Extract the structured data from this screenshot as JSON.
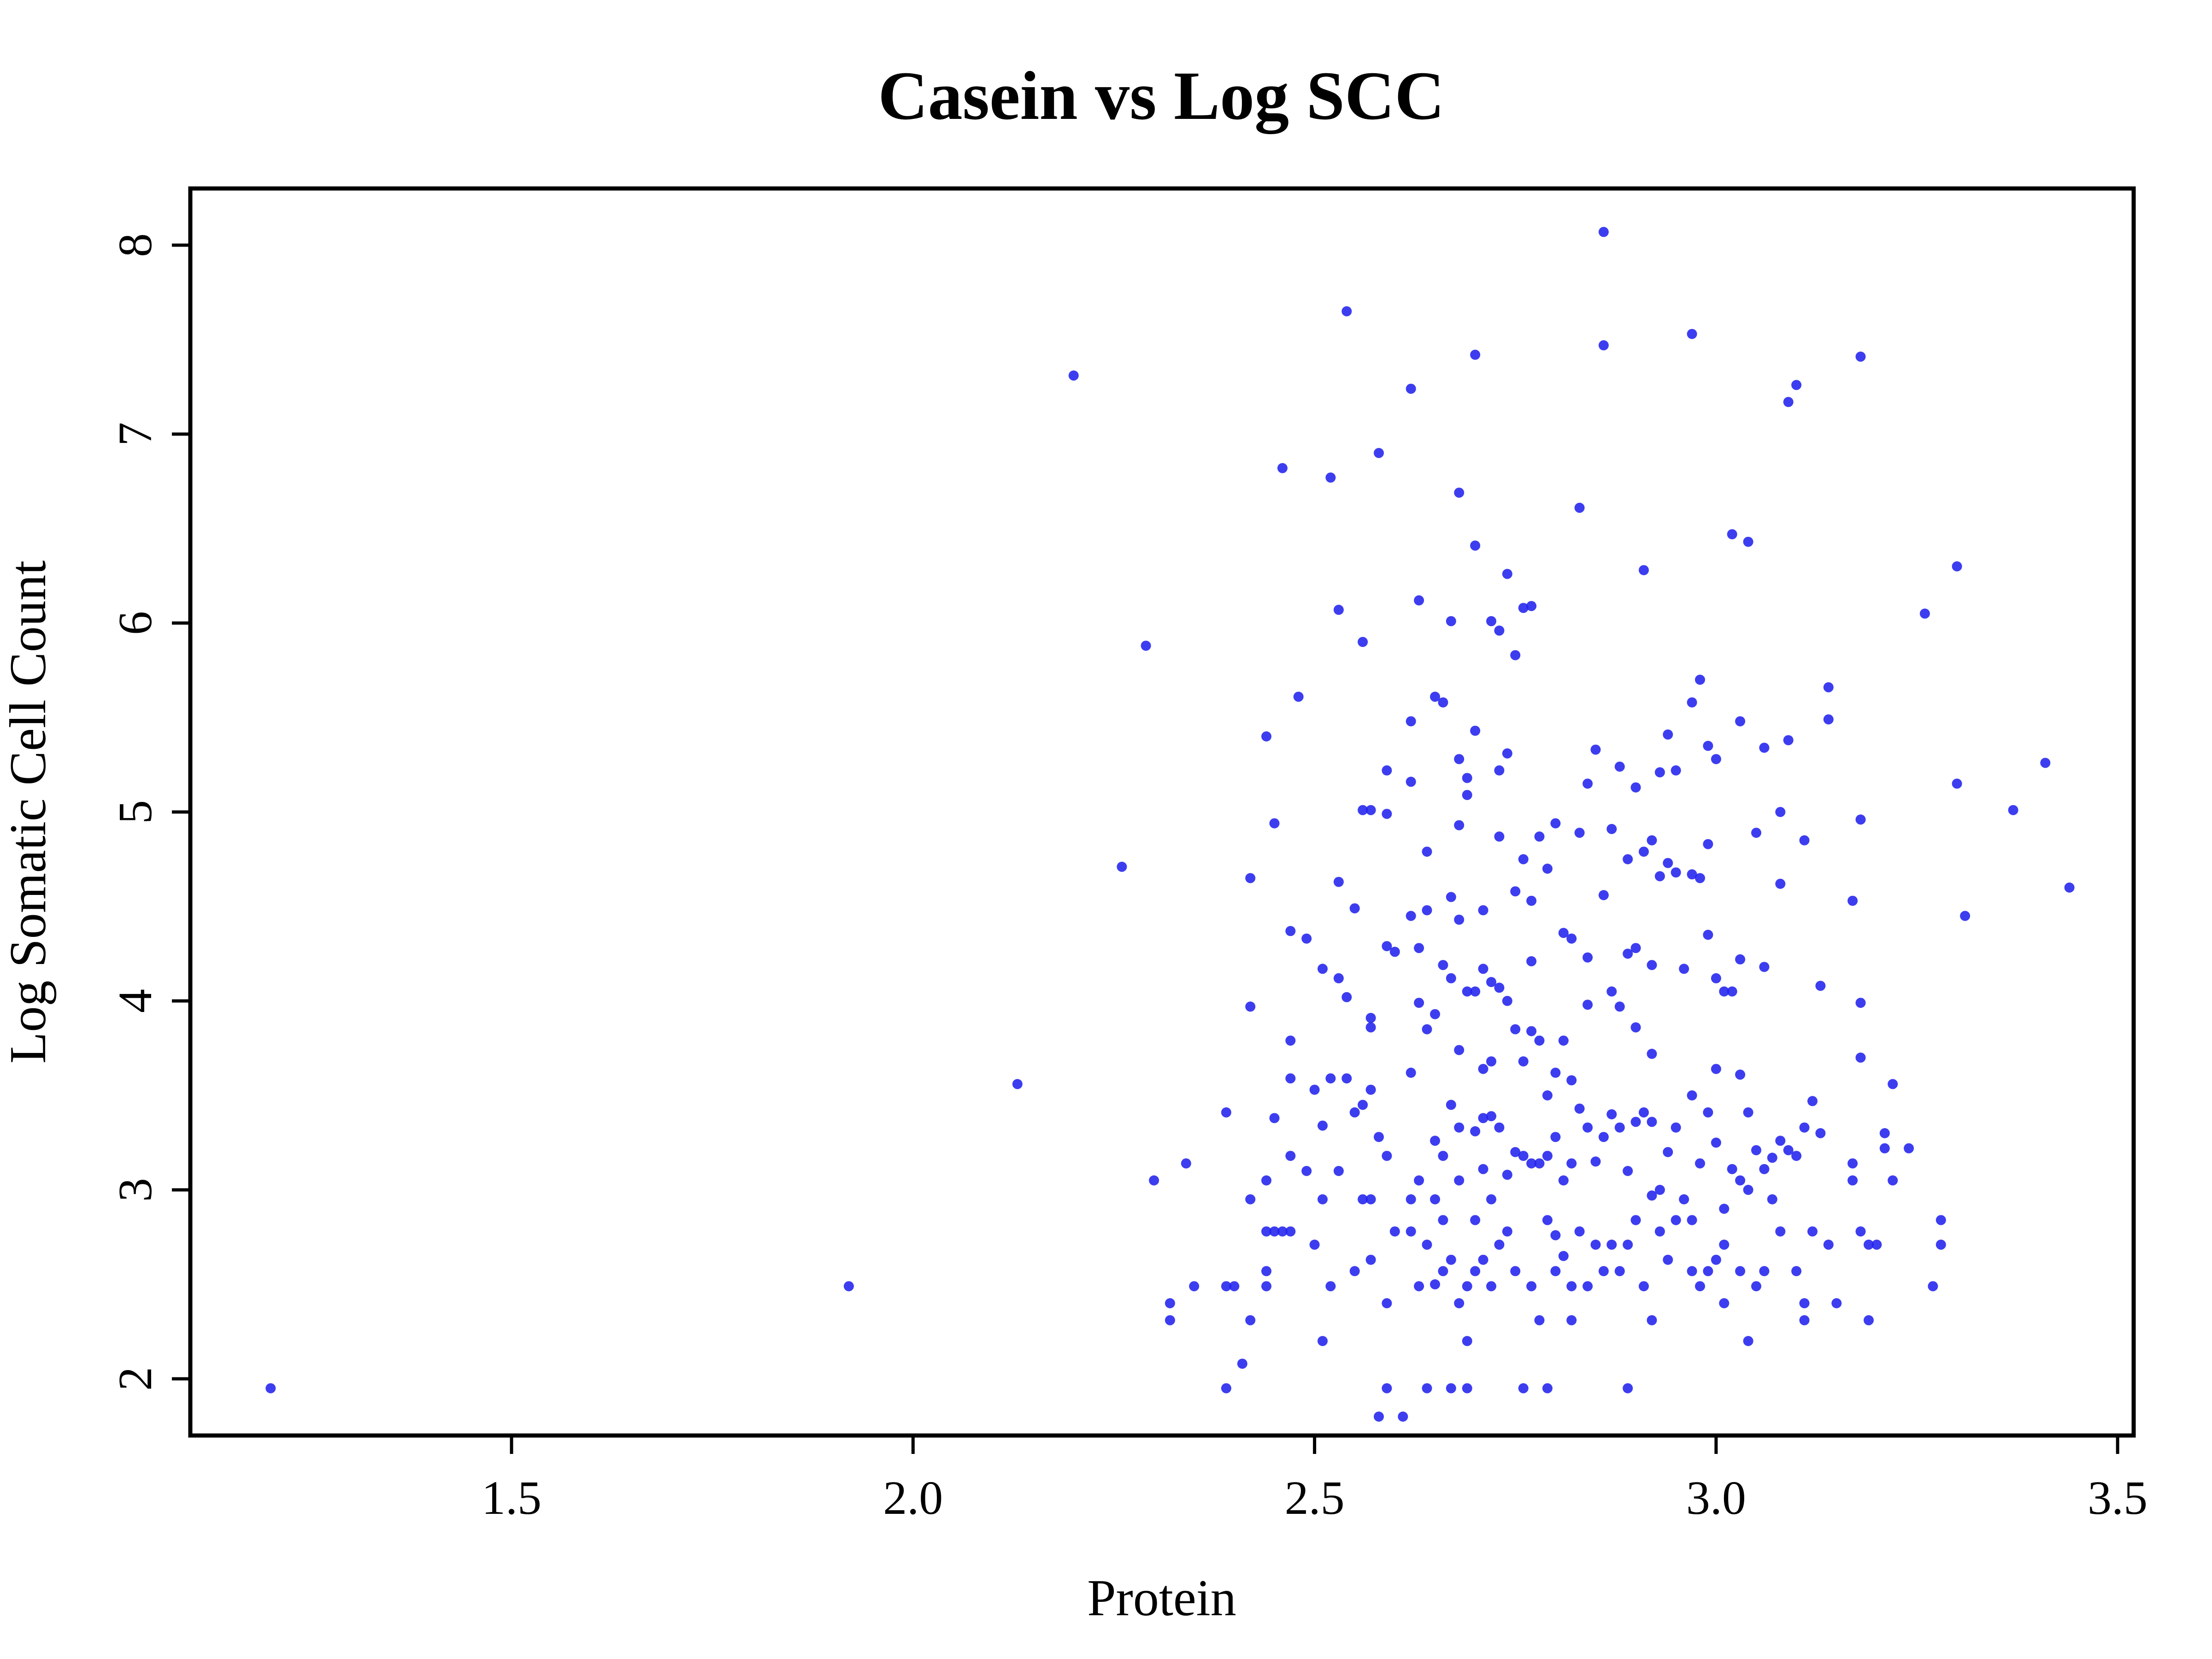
{
  "chart_data": {
    "type": "scatter",
    "title": "Casein vs Log SCC",
    "xlabel": "Protein",
    "ylabel": "Log Somatic Cell Count",
    "xlim": [
      1.1,
      3.52
    ],
    "ylim": [
      1.7,
      8.3
    ],
    "x_ticks": [
      1.5,
      2.0,
      2.5,
      3.0,
      3.5
    ],
    "x_tick_labels": [
      "1.5",
      "2.0",
      "2.5",
      "3.0",
      "3.5"
    ],
    "y_ticks": [
      2,
      3,
      4,
      5,
      6,
      7,
      8
    ],
    "y_tick_labels": [
      "2",
      "3",
      "4",
      "5",
      "6",
      "7",
      "8"
    ],
    "grid": false,
    "legend": "none",
    "marker_color": "#2222ee",
    "points": [
      [
        1.2,
        1.95
      ],
      [
        1.92,
        2.49
      ],
      [
        2.13,
        3.56
      ],
      [
        2.2,
        7.31
      ],
      [
        2.26,
        4.71
      ],
      [
        2.29,
        5.88
      ],
      [
        2.3,
        3.05
      ],
      [
        2.32,
        2.4
      ],
      [
        2.32,
        2.31
      ],
      [
        2.34,
        3.14
      ],
      [
        2.35,
        2.49
      ],
      [
        2.39,
        3.41
      ],
      [
        2.39,
        2.49
      ],
      [
        2.4,
        2.49
      ],
      [
        2.39,
        1.95
      ],
      [
        2.41,
        2.08
      ],
      [
        2.42,
        4.65
      ],
      [
        2.42,
        3.97
      ],
      [
        2.42,
        2.95
      ],
      [
        2.42,
        2.31
      ],
      [
        2.44,
        5.4
      ],
      [
        2.44,
        3.05
      ],
      [
        2.44,
        2.78
      ],
      [
        2.44,
        2.57
      ],
      [
        2.44,
        2.49
      ],
      [
        2.45,
        4.94
      ],
      [
        2.45,
        3.38
      ],
      [
        2.45,
        2.78
      ],
      [
        2.46,
        6.82
      ],
      [
        2.46,
        2.78
      ],
      [
        2.47,
        4.37
      ],
      [
        2.47,
        3.79
      ],
      [
        2.47,
        3.59
      ],
      [
        2.47,
        3.18
      ],
      [
        2.47,
        2.78
      ],
      [
        2.48,
        5.61
      ],
      [
        2.49,
        4.33
      ],
      [
        2.49,
        3.1
      ],
      [
        2.5,
        3.53
      ],
      [
        2.5,
        2.71
      ],
      [
        2.51,
        4.17
      ],
      [
        2.51,
        3.34
      ],
      [
        2.51,
        2.95
      ],
      [
        2.51,
        2.2
      ],
      [
        2.52,
        6.77
      ],
      [
        2.52,
        3.59
      ],
      [
        2.52,
        2.49
      ],
      [
        2.53,
        6.07
      ],
      [
        2.53,
        4.63
      ],
      [
        2.53,
        4.12
      ],
      [
        2.53,
        3.1
      ],
      [
        2.54,
        7.65
      ],
      [
        2.54,
        4.02
      ],
      [
        2.54,
        3.59
      ],
      [
        2.55,
        4.49
      ],
      [
        2.55,
        3.41
      ],
      [
        2.55,
        2.57
      ],
      [
        2.56,
        5.9
      ],
      [
        2.56,
        5.01
      ],
      [
        2.56,
        3.45
      ],
      [
        2.56,
        2.95
      ],
      [
        2.57,
        5.01
      ],
      [
        2.57,
        3.91
      ],
      [
        2.57,
        3.86
      ],
      [
        2.57,
        3.53
      ],
      [
        2.57,
        2.95
      ],
      [
        2.57,
        2.63
      ],
      [
        2.58,
        6.9
      ],
      [
        2.58,
        3.28
      ],
      [
        2.58,
        1.8
      ],
      [
        2.59,
        5.22
      ],
      [
        2.59,
        4.99
      ],
      [
        2.59,
        4.29
      ],
      [
        2.59,
        3.18
      ],
      [
        2.59,
        2.4
      ],
      [
        2.59,
        1.95
      ],
      [
        2.6,
        4.26
      ],
      [
        2.6,
        2.78
      ],
      [
        2.61,
        1.8
      ],
      [
        2.62,
        7.24
      ],
      [
        2.62,
        5.48
      ],
      [
        2.62,
        5.16
      ],
      [
        2.62,
        4.45
      ],
      [
        2.62,
        3.62
      ],
      [
        2.62,
        2.95
      ],
      [
        2.62,
        2.78
      ],
      [
        2.63,
        6.12
      ],
      [
        2.63,
        4.28
      ],
      [
        2.63,
        3.99
      ],
      [
        2.63,
        3.05
      ],
      [
        2.63,
        2.49
      ],
      [
        2.64,
        4.79
      ],
      [
        2.64,
        4.48
      ],
      [
        2.64,
        3.85
      ],
      [
        2.64,
        2.71
      ],
      [
        2.64,
        1.95
      ],
      [
        2.65,
        5.61
      ],
      [
        2.65,
        3.93
      ],
      [
        2.65,
        3.26
      ],
      [
        2.65,
        2.95
      ],
      [
        2.65,
        2.5
      ],
      [
        2.66,
        5.58
      ],
      [
        2.66,
        4.19
      ],
      [
        2.66,
        3.18
      ],
      [
        2.66,
        2.84
      ],
      [
        2.66,
        2.57
      ],
      [
        2.67,
        6.01
      ],
      [
        2.67,
        4.55
      ],
      [
        2.67,
        4.12
      ],
      [
        2.67,
        3.45
      ],
      [
        2.67,
        2.63
      ],
      [
        2.67,
        1.95
      ],
      [
        2.68,
        6.69
      ],
      [
        2.68,
        5.28
      ],
      [
        2.68,
        4.93
      ],
      [
        2.68,
        4.43
      ],
      [
        2.68,
        3.74
      ],
      [
        2.68,
        3.33
      ],
      [
        2.68,
        3.05
      ],
      [
        2.68,
        2.4
      ],
      [
        2.69,
        5.18
      ],
      [
        2.69,
        5.09
      ],
      [
        2.69,
        4.05
      ],
      [
        2.69,
        2.49
      ],
      [
        2.69,
        2.2
      ],
      [
        2.69,
        1.95
      ],
      [
        2.7,
        7.42
      ],
      [
        2.7,
        6.41
      ],
      [
        2.7,
        5.43
      ],
      [
        2.7,
        4.05
      ],
      [
        2.7,
        3.31
      ],
      [
        2.7,
        2.84
      ],
      [
        2.7,
        2.57
      ],
      [
        2.71,
        4.48
      ],
      [
        2.71,
        4.17
      ],
      [
        2.71,
        3.64
      ],
      [
        2.71,
        3.38
      ],
      [
        2.71,
        3.11
      ],
      [
        2.71,
        2.63
      ],
      [
        2.72,
        6.01
      ],
      [
        2.72,
        4.1
      ],
      [
        2.72,
        3.68
      ],
      [
        2.72,
        3.39
      ],
      [
        2.72,
        2.95
      ],
      [
        2.72,
        2.49
      ],
      [
        2.73,
        5.96
      ],
      [
        2.73,
        5.22
      ],
      [
        2.73,
        4.87
      ],
      [
        2.73,
        4.07
      ],
      [
        2.73,
        3.33
      ],
      [
        2.73,
        2.71
      ],
      [
        2.74,
        6.26
      ],
      [
        2.74,
        5.31
      ],
      [
        2.74,
        4.0
      ],
      [
        2.74,
        3.08
      ],
      [
        2.74,
        2.78
      ],
      [
        2.75,
        5.83
      ],
      [
        2.75,
        4.58
      ],
      [
        2.75,
        3.85
      ],
      [
        2.75,
        3.2
      ],
      [
        2.75,
        2.57
      ],
      [
        2.76,
        6.08
      ],
      [
        2.76,
        4.75
      ],
      [
        2.76,
        3.68
      ],
      [
        2.76,
        3.18
      ],
      [
        2.76,
        1.95
      ],
      [
        2.77,
        6.09
      ],
      [
        2.77,
        4.53
      ],
      [
        2.77,
        4.21
      ],
      [
        2.77,
        3.84
      ],
      [
        2.77,
        3.14
      ],
      [
        2.77,
        2.49
      ],
      [
        2.78,
        4.87
      ],
      [
        2.78,
        3.79
      ],
      [
        2.78,
        3.14
      ],
      [
        2.78,
        2.31
      ],
      [
        2.79,
        4.7
      ],
      [
        2.79,
        3.5
      ],
      [
        2.79,
        3.18
      ],
      [
        2.79,
        2.84
      ],
      [
        2.79,
        1.95
      ],
      [
        2.8,
        4.94
      ],
      [
        2.8,
        3.62
      ],
      [
        2.8,
        3.28
      ],
      [
        2.8,
        2.76
      ],
      [
        2.8,
        2.57
      ],
      [
        2.81,
        4.36
      ],
      [
        2.81,
        3.79
      ],
      [
        2.81,
        3.05
      ],
      [
        2.81,
        2.65
      ],
      [
        2.82,
        4.33
      ],
      [
        2.82,
        3.58
      ],
      [
        2.82,
        3.14
      ],
      [
        2.82,
        2.49
      ],
      [
        2.82,
        2.31
      ],
      [
        2.83,
        6.61
      ],
      [
        2.83,
        4.89
      ],
      [
        2.83,
        3.43
      ],
      [
        2.83,
        2.78
      ],
      [
        2.84,
        5.15
      ],
      [
        2.84,
        4.23
      ],
      [
        2.84,
        3.98
      ],
      [
        2.84,
        3.33
      ],
      [
        2.84,
        2.49
      ],
      [
        2.85,
        5.33
      ],
      [
        2.85,
        3.15
      ],
      [
        2.85,
        2.71
      ],
      [
        2.86,
        8.07
      ],
      [
        2.86,
        7.47
      ],
      [
        2.86,
        4.56
      ],
      [
        2.86,
        3.28
      ],
      [
        2.86,
        2.57
      ],
      [
        2.87,
        4.91
      ],
      [
        2.87,
        4.05
      ],
      [
        2.87,
        3.4
      ],
      [
        2.87,
        2.71
      ],
      [
        2.88,
        5.24
      ],
      [
        2.88,
        3.97
      ],
      [
        2.88,
        3.33
      ],
      [
        2.88,
        2.57
      ],
      [
        2.89,
        4.75
      ],
      [
        2.89,
        4.25
      ],
      [
        2.89,
        3.1
      ],
      [
        2.89,
        2.71
      ],
      [
        2.89,
        1.95
      ],
      [
        2.9,
        5.13
      ],
      [
        2.9,
        4.28
      ],
      [
        2.9,
        3.86
      ],
      [
        2.9,
        3.36
      ],
      [
        2.9,
        2.84
      ],
      [
        2.91,
        6.28
      ],
      [
        2.91,
        4.79
      ],
      [
        2.91,
        3.41
      ],
      [
        2.91,
        2.49
      ],
      [
        2.92,
        4.85
      ],
      [
        2.92,
        4.19
      ],
      [
        2.92,
        3.72
      ],
      [
        2.92,
        3.36
      ],
      [
        2.92,
        2.97
      ],
      [
        2.92,
        2.31
      ],
      [
        2.93,
        5.21
      ],
      [
        2.93,
        4.66
      ],
      [
        2.93,
        3.0
      ],
      [
        2.93,
        2.78
      ],
      [
        2.94,
        5.41
      ],
      [
        2.94,
        4.73
      ],
      [
        2.94,
        3.2
      ],
      [
        2.94,
        2.63
      ],
      [
        2.95,
        5.22
      ],
      [
        2.95,
        4.68
      ],
      [
        2.95,
        3.33
      ],
      [
        2.95,
        2.84
      ],
      [
        2.96,
        4.17
      ],
      [
        2.96,
        2.95
      ],
      [
        2.97,
        7.53
      ],
      [
        2.97,
        5.58
      ],
      [
        2.97,
        4.67
      ],
      [
        2.97,
        3.5
      ],
      [
        2.97,
        2.84
      ],
      [
        2.97,
        2.57
      ],
      [
        2.98,
        5.7
      ],
      [
        2.98,
        4.65
      ],
      [
        2.98,
        3.14
      ],
      [
        2.98,
        2.49
      ],
      [
        2.99,
        5.35
      ],
      [
        2.99,
        4.83
      ],
      [
        2.99,
        4.35
      ],
      [
        2.99,
        3.41
      ],
      [
        2.99,
        2.57
      ],
      [
        3.0,
        5.28
      ],
      [
        3.0,
        4.12
      ],
      [
        3.0,
        3.64
      ],
      [
        3.0,
        3.25
      ],
      [
        3.0,
        2.63
      ],
      [
        3.01,
        4.05
      ],
      [
        3.01,
        2.9
      ],
      [
        3.01,
        2.71
      ],
      [
        3.01,
        2.4
      ],
      [
        3.02,
        6.47
      ],
      [
        3.02,
        4.05
      ],
      [
        3.02,
        3.11
      ],
      [
        3.03,
        5.48
      ],
      [
        3.03,
        4.22
      ],
      [
        3.03,
        3.61
      ],
      [
        3.03,
        3.05
      ],
      [
        3.03,
        2.57
      ],
      [
        3.04,
        6.43
      ],
      [
        3.04,
        3.41
      ],
      [
        3.04,
        3.0
      ],
      [
        3.04,
        2.2
      ],
      [
        3.05,
        4.89
      ],
      [
        3.05,
        3.21
      ],
      [
        3.05,
        2.49
      ],
      [
        3.06,
        5.34
      ],
      [
        3.06,
        4.18
      ],
      [
        3.06,
        3.11
      ],
      [
        3.06,
        2.57
      ],
      [
        3.07,
        3.17
      ],
      [
        3.07,
        2.95
      ],
      [
        3.08,
        4.62
      ],
      [
        3.08,
        5.0
      ],
      [
        3.08,
        3.26
      ],
      [
        3.08,
        2.78
      ],
      [
        3.09,
        7.17
      ],
      [
        3.09,
        5.38
      ],
      [
        3.09,
        3.21
      ],
      [
        3.1,
        7.26
      ],
      [
        3.1,
        3.18
      ],
      [
        3.1,
        2.57
      ],
      [
        3.11,
        4.85
      ],
      [
        3.11,
        3.33
      ],
      [
        3.11,
        2.31
      ],
      [
        3.11,
        2.4
      ],
      [
        3.12,
        3.47
      ],
      [
        3.12,
        2.78
      ],
      [
        3.13,
        4.08
      ],
      [
        3.13,
        3.3
      ],
      [
        3.14,
        5.66
      ],
      [
        3.14,
        5.49
      ],
      [
        3.14,
        2.71
      ],
      [
        3.15,
        2.4
      ],
      [
        3.17,
        4.53
      ],
      [
        3.17,
        3.14
      ],
      [
        3.17,
        3.05
      ],
      [
        3.18,
        7.41
      ],
      [
        3.18,
        4.96
      ],
      [
        3.18,
        3.99
      ],
      [
        3.18,
        3.7
      ],
      [
        3.18,
        2.78
      ],
      [
        3.19,
        2.71
      ],
      [
        3.19,
        2.31
      ],
      [
        3.2,
        2.71
      ],
      [
        3.21,
        3.3
      ],
      [
        3.21,
        3.22
      ],
      [
        3.22,
        3.56
      ],
      [
        3.22,
        3.05
      ],
      [
        3.24,
        3.22
      ],
      [
        3.26,
        6.05
      ],
      [
        3.27,
        2.49
      ],
      [
        3.28,
        2.84
      ],
      [
        3.28,
        2.71
      ],
      [
        3.3,
        6.3
      ],
      [
        3.3,
        5.15
      ],
      [
        3.31,
        4.45
      ],
      [
        3.37,
        5.01
      ],
      [
        3.41,
        5.26
      ],
      [
        3.44,
        4.6
      ]
    ]
  }
}
